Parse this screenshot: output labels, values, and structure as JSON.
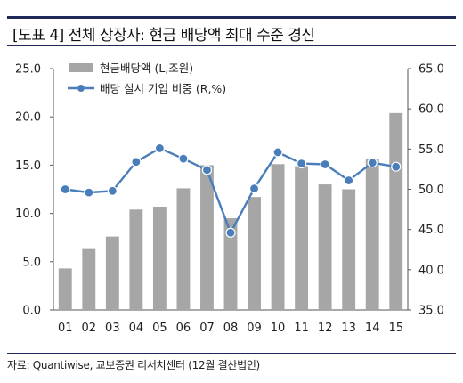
{
  "header": {
    "title": "[도표 4] 전체 상장사: 현금 배당액 최대 수준 경신"
  },
  "footer": {
    "source": "자료: Quantiwise, 교보증권 리서치센터 (12월 결산법인)"
  },
  "chart_data": {
    "type": "bar",
    "categories": [
      "01",
      "02",
      "03",
      "04",
      "05",
      "06",
      "07",
      "08",
      "09",
      "10",
      "11",
      "12",
      "13",
      "14",
      "15"
    ],
    "series": [
      {
        "name": "현금배당액 (L,조원)",
        "type": "bar",
        "axis": "left",
        "color": "#a6a6a6",
        "values": [
          4.3,
          6.4,
          7.6,
          10.4,
          10.7,
          12.6,
          15.0,
          9.5,
          11.7,
          15.1,
          14.9,
          13.0,
          12.5,
          15.6,
          20.4
        ]
      },
      {
        "name": "배당 실시 기업 비중 (R,%)",
        "type": "line",
        "axis": "right",
        "color": "#4a7ebb",
        "values": [
          50.0,
          49.6,
          49.8,
          53.4,
          55.1,
          53.8,
          52.4,
          44.6,
          50.1,
          54.6,
          53.2,
          53.1,
          51.1,
          53.3,
          52.8
        ]
      }
    ],
    "yAxisLeft": {
      "min": 0,
      "max": 25,
      "ticks": [
        "0.0",
        "5.0",
        "10.0",
        "15.0",
        "20.0",
        "25.0"
      ]
    },
    "yAxisRight": {
      "min": 35,
      "max": 65,
      "ticks": [
        "35.0",
        "40.0",
        "45.0",
        "50.0",
        "55.0",
        "60.0",
        "65.0"
      ]
    },
    "grid": false,
    "legend": "top-left"
  }
}
